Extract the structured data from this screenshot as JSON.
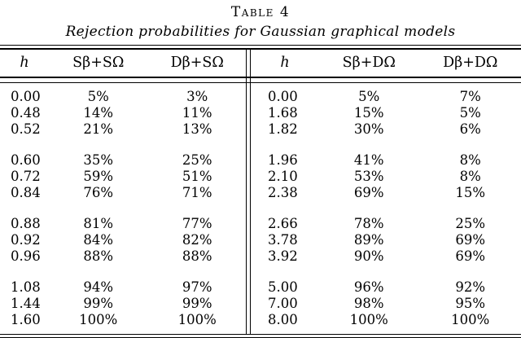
{
  "title": "Table 4",
  "subtitle": "Rejection probabilities for Gaussian graphical models",
  "table": {
    "columns_left": [
      "h",
      "Sβ+SΩ",
      "Dβ+SΩ"
    ],
    "columns_right": [
      "h",
      "Sβ+DΩ",
      "Dβ+DΩ"
    ],
    "left_groups": [
      [
        [
          "0.00",
          "5%",
          "3%"
        ],
        [
          "0.48",
          "14%",
          "11%"
        ],
        [
          "0.52",
          "21%",
          "13%"
        ]
      ],
      [
        [
          "0.60",
          "35%",
          "25%"
        ],
        [
          "0.72",
          "59%",
          "51%"
        ],
        [
          "0.84",
          "76%",
          "71%"
        ]
      ],
      [
        [
          "0.88",
          "81%",
          "77%"
        ],
        [
          "0.92",
          "84%",
          "82%"
        ],
        [
          "0.96",
          "88%",
          "88%"
        ]
      ],
      [
        [
          "1.08",
          "94%",
          "97%"
        ],
        [
          "1.44",
          "99%",
          "99%"
        ],
        [
          "1.60",
          "100%",
          "100%"
        ]
      ]
    ],
    "right_groups": [
      [
        [
          "0.00",
          "5%",
          "7%"
        ],
        [
          "1.68",
          "15%",
          "5%"
        ],
        [
          "1.82",
          "30%",
          "6%"
        ]
      ],
      [
        [
          "1.96",
          "41%",
          "8%"
        ],
        [
          "2.10",
          "53%",
          "8%"
        ],
        [
          "2.38",
          "69%",
          "15%"
        ]
      ],
      [
        [
          "2.66",
          "78%",
          "25%"
        ],
        [
          "3.78",
          "89%",
          "69%"
        ],
        [
          "3.92",
          "90%",
          "69%"
        ]
      ],
      [
        [
          "5.00",
          "96%",
          "92%"
        ],
        [
          "7.00",
          "98%",
          "95%"
        ],
        [
          "8.00",
          "100%",
          "100%"
        ]
      ]
    ]
  }
}
